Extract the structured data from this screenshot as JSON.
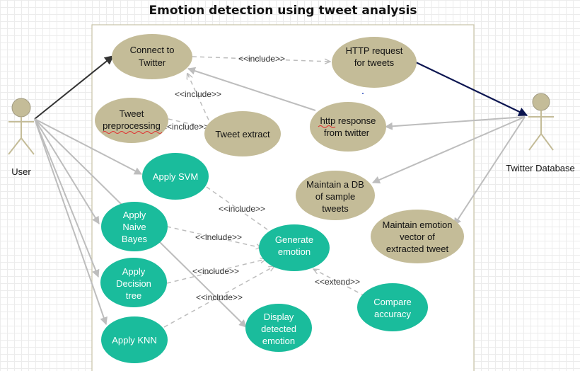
{
  "diagram": {
    "title": "Emotion detection using tweet analysis",
    "colors": {
      "tan": "#c4bc98",
      "teal": "#1abc9c",
      "line": "#bdbdbd",
      "dashed": "#bdbdbd",
      "dark_arrow": "#333333",
      "navy_arrow": "#0b1550",
      "boundary": "#c7c3a6"
    },
    "actors": {
      "user": "User",
      "twitter_db": "Twitter Database"
    },
    "usecases": {
      "connect": [
        "Connect to",
        "Twitter"
      ],
      "http_request": [
        "HTTP request",
        "for tweets"
      ],
      "preprocessing": [
        "Tweet",
        "preprocessing"
      ],
      "extract": [
        "Tweet extract"
      ],
      "http_response": [
        "http response",
        "from twitter"
      ],
      "svm": [
        "Apply SVM"
      ],
      "db": [
        "Maintain a DB",
        "of sample",
        "tweets"
      ],
      "naive": [
        "Apply",
        "Naive",
        "Bayes"
      ],
      "generate": [
        "Generate",
        "emotion"
      ],
      "vector": [
        "Maintain emotion",
        "vector of",
        "extracted tweet"
      ],
      "decision": [
        "Apply",
        "Decision",
        "tree"
      ],
      "knn": [
        "Apply KNN"
      ],
      "display": [
        "Display",
        "detected",
        "emotion"
      ],
      "compare": [
        "Compare",
        "accuracy"
      ]
    },
    "relations": {
      "connect_request": "<<include>>",
      "connect_extract": "<<include>>",
      "preproc_extract": "<<include>>",
      "svm_generate": "<<include>>",
      "naive_generate": "<<include>>",
      "decision_generate": "<<include>>",
      "knn_generate": "<<include>>",
      "compare_generate": "<<extend>>"
    }
  }
}
